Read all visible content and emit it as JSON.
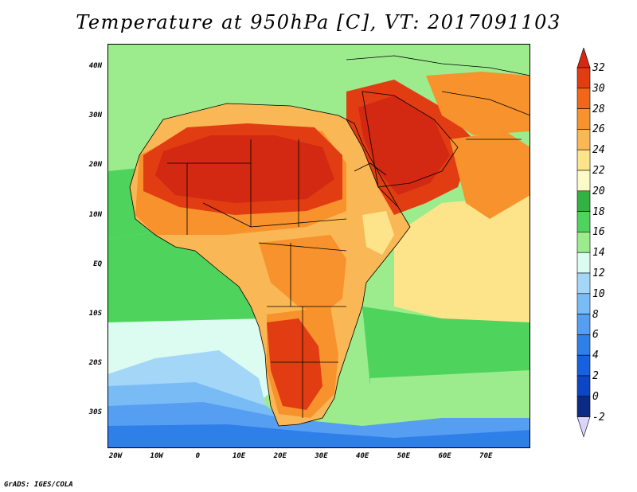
{
  "title": "Temperature at 950hPa [C], VT: 2017091103",
  "credit": "GrADS: IGES/COLA",
  "latitude_labels": [
    "40N",
    "30N",
    "20N",
    "10N",
    "EQ",
    "10S",
    "20S",
    "30S"
  ],
  "longitude_labels": [
    "20W",
    "10W",
    "0",
    "10E",
    "20E",
    "30E",
    "40E",
    "50E",
    "60E",
    "70E"
  ],
  "colorbar": {
    "labels": [
      "32",
      "30",
      "28",
      "26",
      "24",
      "22",
      "20",
      "18",
      "16",
      "14",
      "12",
      "10",
      "8",
      "6",
      "4",
      "2",
      "0",
      "-2"
    ],
    "colors": {
      "top_arrow": "#d32812",
      "30_32": "#e23c12",
      "28_30": "#f2661a",
      "26_28": "#f7922d",
      "24_26": "#fab755",
      "22_24": "#fde48b",
      "20_22": "#fcfac6",
      "18_20": "#31b243",
      "16_18": "#4ed45d",
      "14_16": "#9cec8e",
      "12_14": "#dcfcf1",
      "10_12": "#a4d7f7",
      "8_10": "#79bcf5",
      "6_8": "#559ef1",
      "4_6": "#2f7fe9",
      "2_4": "#1760e0",
      "0_2": "#0c46c6",
      "bottom_arrow": "#0b2a86",
      "bottom_tip": "#ddd4fb"
    }
  },
  "map_colors": {
    "ocean_south_deep": "#2f7fe9",
    "ocean_south": "#559ef1",
    "ocean_mid": "#79bcf5",
    "ocean_cool": "#a4d7f7",
    "ocean_pale": "#dcfcf1",
    "ocean_equatorial": "#4ed45d",
    "ocean_warm": "#9cec8e",
    "indian_ocean": "#fde48b",
    "land_hot": "#e23c12",
    "land_hottest": "#d32812",
    "land_warm": "#f7922d",
    "land_mild": "#fab755",
    "highland": "#fde48b",
    "boundary": "#000000"
  }
}
